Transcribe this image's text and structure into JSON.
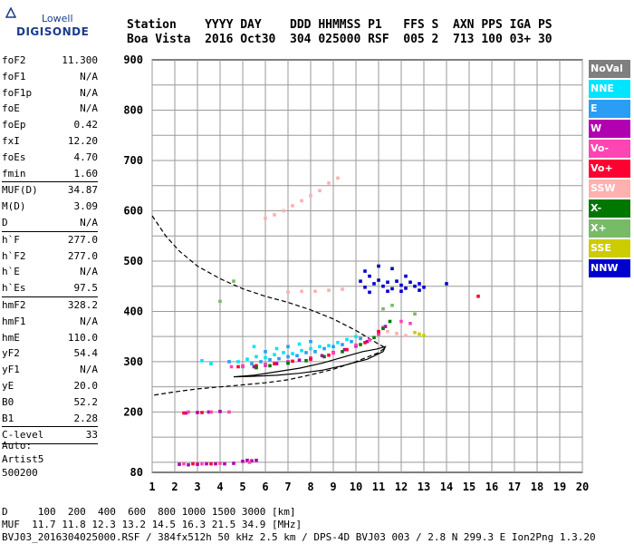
{
  "logo": {
    "top": "Lowell",
    "bottom": "DIGISONDE"
  },
  "header": {
    "labels": "Station    YYYY DAY    DDD HHMMSS P1   FFS S  AXN PPS IGA PS",
    "values": "Boa Vista  2016 Oct30  304 025000 RSF  005 2  713 100 03+ 30"
  },
  "params": [
    {
      "k": "foF2",
      "v": "11.300"
    },
    {
      "k": "foF1",
      "v": "N/A"
    },
    {
      "k": "foF1p",
      "v": "N/A"
    },
    {
      "k": "foE",
      "v": "N/A"
    },
    {
      "k": "foEp",
      "v": "0.42"
    },
    {
      "k": "fxI",
      "v": "12.20"
    },
    {
      "k": "foEs",
      "v": "4.70"
    },
    {
      "k": "fmin",
      "v": "1.60"
    },
    {
      "sep": true
    },
    {
      "k": "MUF(D)",
      "v": "34.87"
    },
    {
      "k": "M(D)",
      "v": "3.09"
    },
    {
      "k": "D",
      "v": "N/A"
    },
    {
      "sep": true
    },
    {
      "k": "h`F",
      "v": "277.0"
    },
    {
      "k": "h`F2",
      "v": "277.0"
    },
    {
      "k": "h`E",
      "v": "N/A"
    },
    {
      "k": "h`Es",
      "v": "97.5"
    },
    {
      "sep": true
    },
    {
      "k": "hmF2",
      "v": "328.2"
    },
    {
      "k": "hmF1",
      "v": "N/A"
    },
    {
      "k": "hmE",
      "v": "110.0"
    },
    {
      "k": "yF2",
      "v": "54.4"
    },
    {
      "k": "yF1",
      "v": "N/A"
    },
    {
      "k": "yE",
      "v": "20.0"
    },
    {
      "k": "B0",
      "v": "52.2"
    },
    {
      "k": "B1",
      "v": "2.28"
    },
    {
      "sep": true
    },
    {
      "k": "C-level",
      "v": "33"
    },
    {
      "sep": true
    }
  ],
  "auto": {
    "line1": "Auto:",
    "line2": "Artist5",
    "line3": "500200"
  },
  "legend": [
    {
      "label": "NoVal",
      "color": "#7f7f7f"
    },
    {
      "label": "NNE",
      "color": "#00e5ff"
    },
    {
      "label": "E",
      "color": "#2a9df4"
    },
    {
      "label": "W",
      "color": "#b000b0"
    },
    {
      "label": "Vo-",
      "color": "#ff44b4"
    },
    {
      "label": "Vo+",
      "color": "#ff0033"
    },
    {
      "label": "SSW",
      "color": "#ffb0b0"
    },
    {
      "label": "X-",
      "color": "#007700"
    },
    {
      "label": "X+",
      "color": "#77bb66"
    },
    {
      "label": "SSE",
      "color": "#cccc00"
    },
    {
      "label": "NNW",
      "color": "#0000cc"
    }
  ],
  "footer": {
    "line1": "D     100  200  400  600  800 1000 1500 3000 [km]",
    "line2": "MUF  11.7 11.8 12.3 13.2 14.5 16.3 21.5 34.9 [MHz]",
    "line3": "BVJ03_2016304025000.RSF / 384fx512h 50 kHz 2.5 km / DPS-4D BVJ03 003 / 2.8 N 299.3 E Ion2Png 1.3.20"
  },
  "chart_data": {
    "type": "scatter",
    "xlim": [
      1,
      20
    ],
    "ylim": [
      80,
      900
    ],
    "xticks": [
      1,
      2,
      3,
      4,
      5,
      6,
      7,
      8,
      9,
      10,
      11,
      12,
      13,
      14,
      15,
      16,
      17,
      18,
      19,
      20
    ],
    "yticks": [
      80,
      200,
      300,
      400,
      500,
      600,
      700,
      800,
      900
    ],
    "grid": true,
    "series": [
      {
        "name": "NNE",
        "color": "#00e5ff",
        "points": [
          [
            4.8,
            300
          ],
          [
            5.2,
            305
          ],
          [
            5.6,
            310
          ],
          [
            6,
            308
          ],
          [
            6.4,
            314
          ],
          [
            6.8,
            318
          ],
          [
            7.2,
            316
          ],
          [
            7.6,
            322
          ],
          [
            8,
            326
          ],
          [
            8.4,
            330
          ],
          [
            8.8,
            332
          ],
          [
            9.2,
            338
          ],
          [
            9.6,
            344
          ],
          [
            10,
            350
          ],
          [
            3.2,
            302
          ],
          [
            3.6,
            296
          ],
          [
            5.5,
            330
          ],
          [
            6.5,
            326
          ],
          [
            7.5,
            335
          ]
        ]
      },
      {
        "name": "E",
        "color": "#2a9df4",
        "points": [
          [
            5,
            290
          ],
          [
            5.4,
            296
          ],
          [
            5.8,
            300
          ],
          [
            6.2,
            304
          ],
          [
            6.6,
            306
          ],
          [
            7,
            310
          ],
          [
            7.4,
            312
          ],
          [
            7.8,
            318
          ],
          [
            8.2,
            320
          ],
          [
            8.6,
            326
          ],
          [
            9,
            330
          ],
          [
            9.4,
            334
          ],
          [
            9.8,
            340
          ],
          [
            10.2,
            346
          ],
          [
            4.4,
            300
          ],
          [
            6,
            320
          ],
          [
            7,
            330
          ],
          [
            8,
            340
          ]
        ]
      },
      {
        "name": "W",
        "color": "#b000b0",
        "points": [
          [
            2.2,
            96
          ],
          [
            2.6,
            95
          ],
          [
            3,
            96
          ],
          [
            3.4,
            97
          ],
          [
            3.8,
            97
          ],
          [
            4.2,
            97
          ],
          [
            4.6,
            98
          ],
          [
            5,
            102
          ],
          [
            5.2,
            104
          ],
          [
            5.4,
            103
          ],
          [
            5.6,
            104
          ],
          [
            2.5,
            198
          ],
          [
            3,
            199
          ],
          [
            3.5,
            200
          ],
          [
            4,
            201
          ],
          [
            5.5,
            290
          ],
          [
            6,
            293
          ],
          [
            6.5,
            296
          ],
          [
            7,
            300
          ],
          [
            7.5,
            303
          ],
          [
            8,
            307
          ],
          [
            8.5,
            312
          ],
          [
            9,
            318
          ],
          [
            9.5,
            324
          ],
          [
            10,
            331
          ],
          [
            10.5,
            340
          ],
          [
            11,
            355
          ],
          [
            11.3,
            370
          ]
        ]
      },
      {
        "name": "Vo-",
        "color": "#ff44b4",
        "points": [
          [
            2.4,
            97
          ],
          [
            3.2,
            97
          ],
          [
            4,
            98
          ],
          [
            5.3,
            100
          ],
          [
            2.6,
            200
          ],
          [
            3.6,
            200
          ],
          [
            4.4,
            200
          ],
          [
            4.5,
            290
          ],
          [
            5,
            292
          ],
          [
            6,
            295
          ],
          [
            7,
            300
          ],
          [
            8,
            306
          ],
          [
            9,
            317
          ],
          [
            10,
            333
          ],
          [
            10.6,
            343
          ],
          [
            11,
            356
          ],
          [
            11.2,
            368
          ],
          [
            12,
            380
          ],
          [
            12.4,
            376
          ]
        ]
      },
      {
        "name": "Vo+",
        "color": "#ff0033",
        "points": [
          [
            2.8,
            97
          ],
          [
            3.6,
            97
          ],
          [
            2.4,
            198
          ],
          [
            3.2,
            199
          ],
          [
            4.8,
            290
          ],
          [
            5.6,
            292
          ],
          [
            6.4,
            296
          ],
          [
            7.2,
            301
          ],
          [
            8,
            305
          ],
          [
            8.8,
            313
          ],
          [
            9.6,
            324
          ],
          [
            10.4,
            338
          ],
          [
            11,
            360
          ],
          [
            15.4,
            430
          ]
        ]
      },
      {
        "name": "SSW",
        "color": "#ffb0b0",
        "points": [
          [
            6,
            585
          ],
          [
            6.4,
            592
          ],
          [
            6.8,
            600
          ],
          [
            7.2,
            610
          ],
          [
            7.6,
            620
          ],
          [
            8,
            630
          ],
          [
            8.4,
            640
          ],
          [
            8.8,
            655
          ],
          [
            9.2,
            665
          ],
          [
            7,
            438
          ],
          [
            7.6,
            440
          ],
          [
            8.2,
            440
          ],
          [
            8.8,
            442
          ],
          [
            9.4,
            444
          ],
          [
            11.4,
            360
          ],
          [
            11.8,
            356
          ],
          [
            12.2,
            352
          ]
        ]
      },
      {
        "name": "X-",
        "color": "#007700",
        "points": [
          [
            5.6,
            288
          ],
          [
            6.2,
            292
          ],
          [
            7,
            297
          ],
          [
            7.8,
            302
          ],
          [
            8.6,
            310
          ],
          [
            9.4,
            320
          ],
          [
            10.2,
            334
          ],
          [
            10.8,
            348
          ],
          [
            11.2,
            366
          ],
          [
            11.5,
            380
          ]
        ]
      },
      {
        "name": "X+",
        "color": "#77bb66",
        "points": [
          [
            4,
            420
          ],
          [
            4.6,
            460
          ],
          [
            11.2,
            405
          ],
          [
            11.6,
            412
          ],
          [
            12.6,
            395
          ]
        ]
      },
      {
        "name": "SSE",
        "color": "#cccc00",
        "points": [
          [
            12.8,
            355
          ],
          [
            13,
            352
          ],
          [
            12.6,
            358
          ]
        ]
      },
      {
        "name": "NNW",
        "color": "#0000cc",
        "points": [
          [
            10.2,
            460
          ],
          [
            10.4,
            448
          ],
          [
            10.6,
            470
          ],
          [
            10.8,
            455
          ],
          [
            11,
            462
          ],
          [
            11.2,
            450
          ],
          [
            11.4,
            458
          ],
          [
            11.6,
            445
          ],
          [
            11.8,
            460
          ],
          [
            12,
            452
          ],
          [
            12.2,
            446
          ],
          [
            12.4,
            458
          ],
          [
            12.6,
            450
          ],
          [
            12.8,
            455
          ],
          [
            13,
            448
          ],
          [
            10.4,
            480
          ],
          [
            11,
            490
          ],
          [
            11.6,
            485
          ],
          [
            12.2,
            470
          ],
          [
            10.6,
            438
          ],
          [
            11.4,
            440
          ],
          [
            12,
            440
          ],
          [
            12.8,
            442
          ],
          [
            14,
            455
          ]
        ]
      }
    ],
    "curves": [
      {
        "name": "profile",
        "style": "dashed",
        "points": [
          [
            1,
            590
          ],
          [
            1.6,
            550
          ],
          [
            2.2,
            520
          ],
          [
            3,
            490
          ],
          [
            4,
            465
          ],
          [
            5,
            445
          ],
          [
            6,
            430
          ],
          [
            7,
            418
          ],
          [
            8,
            403
          ],
          [
            9,
            385
          ],
          [
            10,
            362
          ],
          [
            11,
            335
          ],
          [
            11.3,
            328
          ],
          [
            11,
            318
          ],
          [
            10,
            300
          ],
          [
            9,
            285
          ],
          [
            8,
            274
          ],
          [
            7,
            264
          ],
          [
            6,
            258
          ],
          [
            5,
            254
          ],
          [
            4,
            250
          ],
          [
            3,
            246
          ],
          [
            2,
            240
          ],
          [
            1,
            233
          ]
        ]
      },
      {
        "name": "trace",
        "style": "solid",
        "points": [
          [
            4.6,
            270
          ],
          [
            5.5,
            273
          ],
          [
            6.5,
            280
          ],
          [
            7.5,
            287
          ],
          [
            8.5,
            297
          ],
          [
            9.5,
            310
          ],
          [
            10.3,
            320
          ],
          [
            10.9,
            325
          ],
          [
            11.3,
            330
          ],
          [
            11.2,
            320
          ],
          [
            10.5,
            305
          ],
          [
            9.5,
            293
          ],
          [
            8.5,
            283
          ],
          [
            7.5,
            277
          ],
          [
            6.5,
            273
          ],
          [
            5.5,
            271
          ],
          [
            4.6,
            270
          ]
        ]
      }
    ]
  }
}
